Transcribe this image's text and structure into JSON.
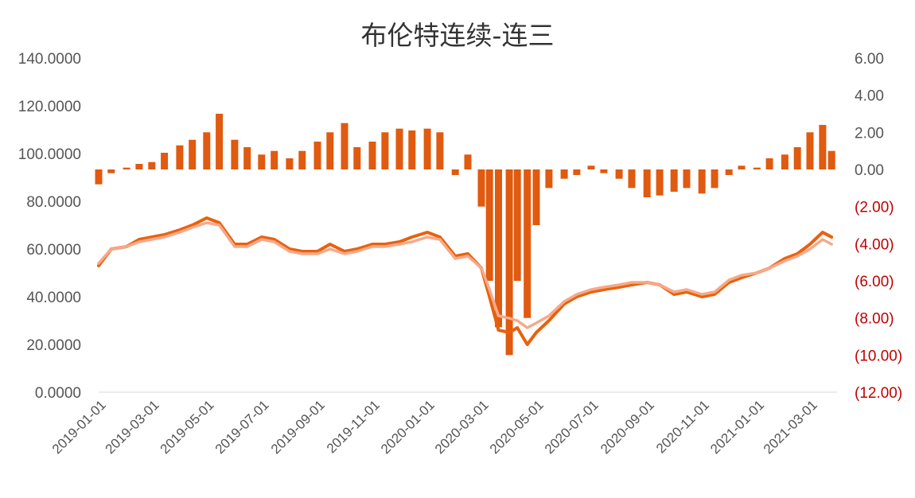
{
  "chart_data": {
    "type": "bar+line",
    "title": "布伦特连续-连三",
    "left_axis": {
      "ylim": [
        0,
        140
      ],
      "ticks": [
        0,
        20,
        40,
        60,
        80,
        100,
        120,
        140
      ],
      "tick_labels": [
        "0.0000",
        "20.0000",
        "40.0000",
        "60.0000",
        "80.0000",
        "100.0000",
        "120.0000",
        "140.0000"
      ]
    },
    "right_axis": {
      "ylim": [
        -12,
        6
      ],
      "ticks": [
        -12,
        -10,
        -8,
        -6,
        -4,
        -2,
        0,
        2,
        4,
        6
      ],
      "tick_labels": [
        "(12.00)",
        "(10.00)",
        "(8.00)",
        "(6.00)",
        "(4.00)",
        "(2.00)",
        "0.00",
        "2.00",
        "4.00",
        "6.00"
      ],
      "negative_color": "#c00000"
    },
    "x_axis": {
      "range": [
        "2019-01-01",
        "2021-03-31"
      ],
      "tick_labels": [
        "2019-01-01",
        "2019-03-01",
        "2019-05-01",
        "2019-07-01",
        "2019-09-01",
        "2019-11-01",
        "2020-01-01",
        "2020-03-01",
        "2020-05-01",
        "2020-07-01",
        "2020-09-01",
        "2020-11-01",
        "2021-01-01",
        "2021-03-01"
      ]
    },
    "grid": false,
    "legend": "none",
    "colors": {
      "continuous": "#e8620d",
      "third_month": "#f6a98a",
      "spread_bar": "#e05a10"
    },
    "series": [
      {
        "type": "line",
        "axis": "left",
        "x": [
          "2019-01-01",
          "2019-01-15",
          "2019-02-01",
          "2019-02-15",
          "2019-03-01",
          "2019-03-15",
          "2019-04-01",
          "2019-04-15",
          "2019-05-01",
          "2019-05-15",
          "2019-06-01",
          "2019-06-15",
          "2019-07-01",
          "2019-07-15",
          "2019-08-01",
          "2019-08-15",
          "2019-09-01",
          "2019-09-15",
          "2019-10-01",
          "2019-10-15",
          "2019-11-01",
          "2019-11-15",
          "2019-12-01",
          "2019-12-15",
          "2020-01-01",
          "2020-01-15",
          "2020-02-01",
          "2020-02-15",
          "2020-03-01",
          "2020-03-10",
          "2020-03-20",
          "2020-04-01",
          "2020-04-10",
          "2020-04-21",
          "2020-05-01",
          "2020-05-15",
          "2020-06-01",
          "2020-06-15",
          "2020-07-01",
          "2020-07-15",
          "2020-08-01",
          "2020-08-15",
          "2020-09-01",
          "2020-09-15",
          "2020-10-01",
          "2020-10-15",
          "2020-11-01",
          "2020-11-15",
          "2020-12-01",
          "2020-12-15",
          "2021-01-01",
          "2021-01-15",
          "2021-02-01",
          "2021-02-15",
          "2021-03-01",
          "2021-03-15",
          "2021-03-25"
        ],
        "values": [
          53,
          60,
          61,
          64,
          65,
          66,
          68,
          70,
          73,
          71,
          62,
          62,
          65,
          64,
          60,
          59,
          59,
          62,
          59,
          60,
          62,
          62,
          63,
          65,
          67,
          65,
          57,
          58,
          52,
          40,
          26,
          25,
          27,
          20,
          25,
          30,
          37,
          40,
          42,
          43,
          44,
          45,
          46,
          45,
          41,
          42,
          40,
          41,
          46,
          48,
          50,
          52,
          56,
          58,
          62,
          67,
          65
        ]
      },
      {
        "type": "line",
        "axis": "left",
        "x": [
          "2019-01-01",
          "2019-01-15",
          "2019-02-01",
          "2019-02-15",
          "2019-03-01",
          "2019-03-15",
          "2019-04-01",
          "2019-04-15",
          "2019-05-01",
          "2019-05-15",
          "2019-06-01",
          "2019-06-15",
          "2019-07-01",
          "2019-07-15",
          "2019-08-01",
          "2019-08-15",
          "2019-09-01",
          "2019-09-15",
          "2019-10-01",
          "2019-10-15",
          "2019-11-01",
          "2019-11-15",
          "2019-12-01",
          "2019-12-15",
          "2020-01-01",
          "2020-01-15",
          "2020-02-01",
          "2020-02-15",
          "2020-03-01",
          "2020-03-10",
          "2020-03-20",
          "2020-04-01",
          "2020-04-10",
          "2020-04-21",
          "2020-05-01",
          "2020-05-15",
          "2020-06-01",
          "2020-06-15",
          "2020-07-01",
          "2020-07-15",
          "2020-08-01",
          "2020-08-15",
          "2020-09-01",
          "2020-09-15",
          "2020-10-01",
          "2020-10-15",
          "2020-11-01",
          "2020-11-15",
          "2020-12-01",
          "2020-12-15",
          "2021-01-01",
          "2021-01-15",
          "2021-02-01",
          "2021-02-15",
          "2021-03-01",
          "2021-03-15",
          "2021-03-25"
        ],
        "values": [
          54,
          60,
          61,
          63,
          64,
          65,
          67,
          69,
          71,
          70,
          61,
          61,
          64,
          63,
          59,
          58,
          58,
          60,
          58,
          59,
          61,
          61,
          62,
          63,
          65,
          64,
          56,
          57,
          52,
          43,
          32,
          31,
          30,
          27,
          29,
          32,
          38,
          41,
          43,
          44,
          45,
          46,
          46,
          45,
          42,
          43,
          41,
          42,
          47,
          49,
          50,
          52,
          55,
          57,
          60,
          64,
          62
        ]
      },
      {
        "type": "bar",
        "axis": "right",
        "x": [
          "2019-01-01",
          "2019-01-15",
          "2019-02-01",
          "2019-02-15",
          "2019-03-01",
          "2019-03-15",
          "2019-04-01",
          "2019-04-15",
          "2019-05-01",
          "2019-05-15",
          "2019-06-01",
          "2019-06-15",
          "2019-07-01",
          "2019-07-15",
          "2019-08-01",
          "2019-08-15",
          "2019-09-01",
          "2019-09-15",
          "2019-10-01",
          "2019-10-15",
          "2019-11-01",
          "2019-11-15",
          "2019-12-01",
          "2019-12-15",
          "2020-01-01",
          "2020-01-15",
          "2020-02-01",
          "2020-02-15",
          "2020-03-01",
          "2020-03-10",
          "2020-03-20",
          "2020-04-01",
          "2020-04-10",
          "2020-04-21",
          "2020-05-01",
          "2020-05-15",
          "2020-06-01",
          "2020-06-15",
          "2020-07-01",
          "2020-07-15",
          "2020-08-01",
          "2020-08-15",
          "2020-09-01",
          "2020-09-15",
          "2020-10-01",
          "2020-10-15",
          "2020-11-01",
          "2020-11-15",
          "2020-12-01",
          "2020-12-15",
          "2021-01-01",
          "2021-01-15",
          "2021-02-01",
          "2021-02-15",
          "2021-03-01",
          "2021-03-15",
          "2021-03-25"
        ],
        "values": [
          -0.8,
          -0.2,
          0.1,
          0.3,
          0.4,
          0.9,
          1.3,
          1.6,
          2.0,
          3.0,
          1.6,
          1.2,
          0.8,
          1.0,
          0.6,
          1.0,
          1.5,
          2.0,
          2.5,
          1.2,
          1.5,
          2.0,
          2.2,
          2.1,
          2.2,
          2.0,
          -0.3,
          0.8,
          -2.0,
          -6.0,
          -8.5,
          -10.0,
          -6.0,
          -8.0,
          -3.0,
          -1.0,
          -0.5,
          -0.3,
          0.2,
          -0.2,
          -0.5,
          -1.0,
          -1.5,
          -1.4,
          -1.2,
          -1.0,
          -1.3,
          -1.0,
          -0.3,
          0.2,
          0.1,
          0.6,
          0.8,
          1.2,
          2.0,
          2.4,
          1.0
        ]
      }
    ]
  }
}
